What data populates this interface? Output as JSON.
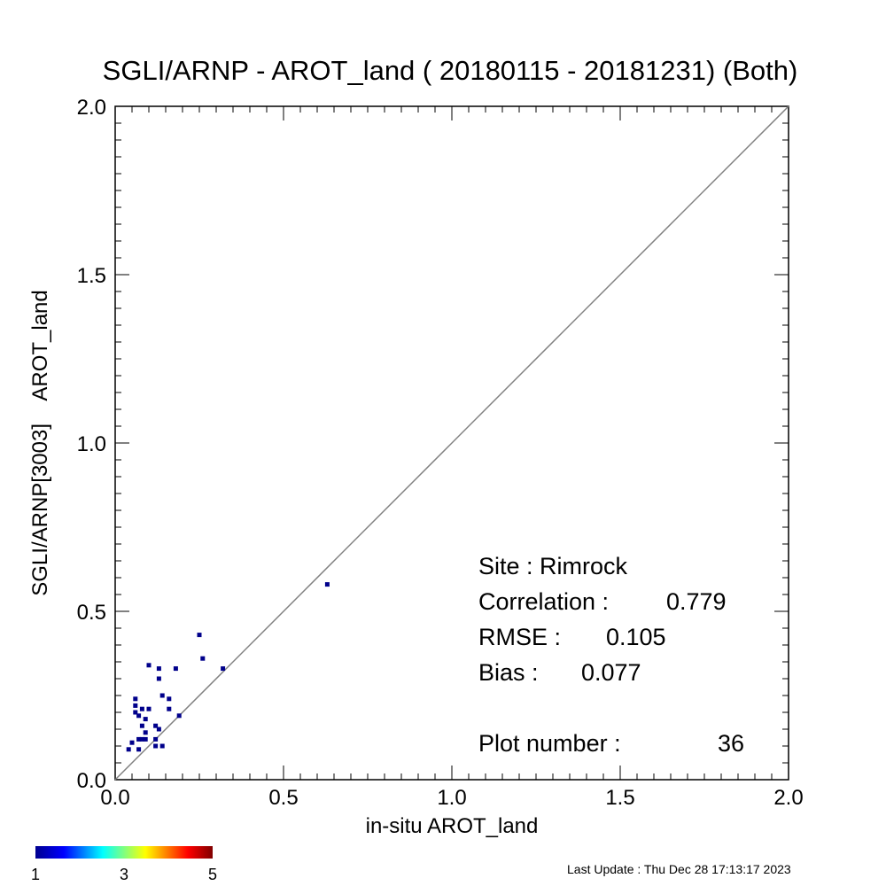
{
  "chart_data": {
    "type": "scatter",
    "title": "SGLI/ARNP - AROT_land ( 20180115 - 20181231) (Both)",
    "xlabel": "in-situ AROT_land",
    "ylabel": "SGLI/ARNP[3003]    AROT_land",
    "xlim": [
      0.0,
      2.0
    ],
    "ylim": [
      0.0,
      2.0
    ],
    "x_ticks": [
      "0.0",
      "0.5",
      "1.0",
      "1.5",
      "2.0"
    ],
    "y_ticks": [
      "0.0",
      "0.5",
      "1.0",
      "1.5",
      "2.0"
    ],
    "reference_line": "1:1",
    "grid": false,
    "point_color": "#00008b",
    "points": [
      {
        "x": 0.63,
        "y": 0.58
      },
      {
        "x": 0.25,
        "y": 0.43
      },
      {
        "x": 0.26,
        "y": 0.36
      },
      {
        "x": 0.32,
        "y": 0.33
      },
      {
        "x": 0.1,
        "y": 0.34
      },
      {
        "x": 0.13,
        "y": 0.33
      },
      {
        "x": 0.13,
        "y": 0.3
      },
      {
        "x": 0.18,
        "y": 0.33
      },
      {
        "x": 0.14,
        "y": 0.25
      },
      {
        "x": 0.16,
        "y": 0.24
      },
      {
        "x": 0.16,
        "y": 0.21
      },
      {
        "x": 0.06,
        "y": 0.24
      },
      {
        "x": 0.06,
        "y": 0.22
      },
      {
        "x": 0.06,
        "y": 0.2
      },
      {
        "x": 0.07,
        "y": 0.19
      },
      {
        "x": 0.08,
        "y": 0.21
      },
      {
        "x": 0.1,
        "y": 0.21
      },
      {
        "x": 0.09,
        "y": 0.18
      },
      {
        "x": 0.19,
        "y": 0.19
      },
      {
        "x": 0.08,
        "y": 0.16
      },
      {
        "x": 0.09,
        "y": 0.14
      },
      {
        "x": 0.12,
        "y": 0.16
      },
      {
        "x": 0.13,
        "y": 0.15
      },
      {
        "x": 0.07,
        "y": 0.12
      },
      {
        "x": 0.08,
        "y": 0.12
      },
      {
        "x": 0.09,
        "y": 0.12
      },
      {
        "x": 0.12,
        "y": 0.12
      },
      {
        "x": 0.05,
        "y": 0.11
      },
      {
        "x": 0.12,
        "y": 0.1
      },
      {
        "x": 0.14,
        "y": 0.1
      },
      {
        "x": 0.04,
        "y": 0.09
      },
      {
        "x": 0.07,
        "y": 0.09
      }
    ],
    "stats": {
      "site": "Site : Rimrock",
      "correlation_label": "Correlation :",
      "correlation": "0.779",
      "rmse_label": "RMSE :",
      "rmse": "0.105",
      "bias_label": "Bias :",
      "bias": "0.077",
      "plot_number_label": "Plot number :",
      "plot_number": "36"
    },
    "colorbar": {
      "ticks": [
        "1",
        "3",
        "5"
      ],
      "colors": [
        "#00008f",
        "#0000ff",
        "#00ffff",
        "#ffff00",
        "#ff0000",
        "#800000"
      ]
    }
  },
  "footer": {
    "last_update": "Last Update : Thu Dec 28 17:13:17 2023"
  }
}
